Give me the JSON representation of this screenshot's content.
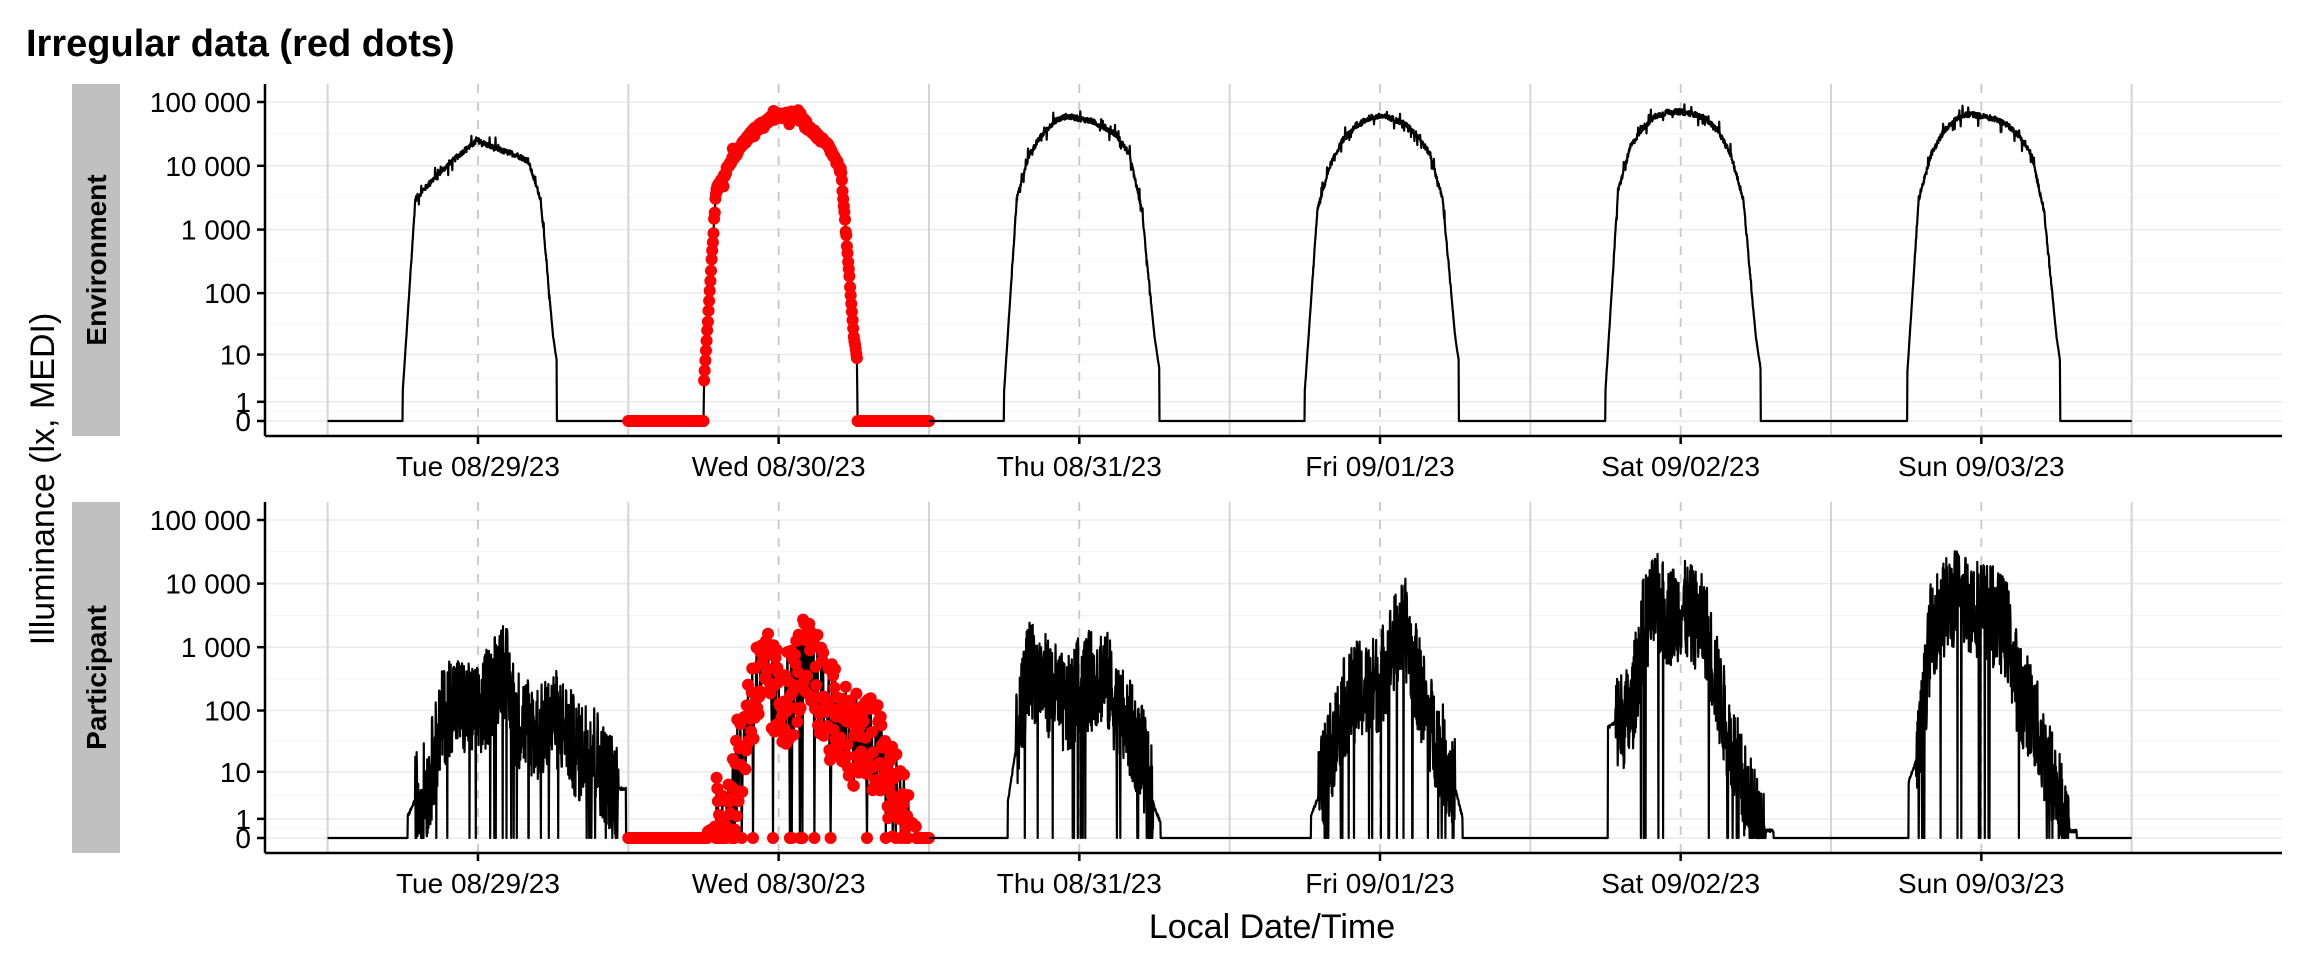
{
  "chart_data": {
    "type": "line",
    "title": "Irregular data (red dots)",
    "xlabel": "Local Date/Time",
    "ylabel": "Illuminance (lx, MEDI)",
    "y_scale": "symlog",
    "y_ticks": [
      0,
      1,
      10,
      100,
      1000,
      10000,
      100000
    ],
    "y_tick_labels": [
      "0",
      "1",
      "10",
      "100",
      "1 000",
      "10 000",
      "100 000"
    ],
    "x_range": [
      "08/28/23 19:00",
      "09/04/23 12:00"
    ],
    "x_ticks": [
      "08/29/23 12:00",
      "08/30/23 12:00",
      "08/31/23 12:00",
      "09/01/23 12:00",
      "09/02/23 12:00",
      "09/03/23 12:00"
    ],
    "x_tick_labels": [
      "Tue 08/29/23",
      "Wed 08/30/23",
      "Thu 08/31/23",
      "Fri 09/01/23",
      "Sat 09/02/23",
      "Sun 09/03/23"
    ],
    "day_boundaries": [
      "08/29/23 00:00",
      "08/30/23 00:00",
      "08/31/23 00:00",
      "09/01/23 00:00",
      "09/02/23 00:00",
      "09/03/23 00:00",
      "09/04/23 00:00"
    ],
    "grid": true,
    "facets": [
      {
        "label": "Environment",
        "days": [
          {
            "date": "08/29/23",
            "style": "line",
            "rise_h": 6.0,
            "set_h": 18.3,
            "hourly_lux": [
              0,
              0,
              0,
              0,
              0,
              0,
              2,
              3000,
              5000,
              8000,
              12000,
              18000,
              25000,
              20000,
              17000,
              15000,
              12000,
              3000,
              20,
              0,
              0,
              0,
              0,
              0
            ]
          },
          {
            "date": "08/30/23",
            "style": "dots",
            "rise_h": 6.0,
            "set_h": 18.3,
            "hourly_lux": [
              0,
              0,
              0,
              0,
              0,
              0,
              2,
              4000,
              10000,
              20000,
              35000,
              50000,
              60000,
              65000,
              50000,
              30000,
              20000,
              8000,
              20,
              0,
              0,
              0,
              0,
              0
            ]
          },
          {
            "date": "08/31/23",
            "style": "line",
            "rise_h": 6.0,
            "set_h": 18.4,
            "hourly_lux": [
              0,
              0,
              0,
              0,
              0,
              0,
              2,
              3000,
              15000,
              30000,
              50000,
              60000,
              55000,
              50000,
              40000,
              30000,
              15000,
              2000,
              20,
              0,
              0,
              0,
              0,
              0
            ]
          },
          {
            "date": "09/01/23",
            "style": "line",
            "rise_h": 6.0,
            "set_h": 18.3,
            "hourly_lux": [
              0,
              0,
              0,
              0,
              0,
              0,
              2,
              2000,
              10000,
              25000,
              40000,
              55000,
              60000,
              55000,
              45000,
              30000,
              15000,
              3000,
              20,
              0,
              0,
              0,
              0,
              0
            ]
          },
          {
            "date": "09/02/23",
            "style": "line",
            "rise_h": 6.0,
            "set_h": 18.4,
            "hourly_lux": [
              0,
              0,
              0,
              0,
              0,
              0,
              2,
              4000,
              20000,
              40000,
              60000,
              70000,
              70000,
              65000,
              55000,
              35000,
              15000,
              3000,
              20,
              0,
              0,
              0,
              0,
              0
            ]
          },
          {
            "date": "09/03/23",
            "style": "line",
            "rise_h": 6.1,
            "set_h": 18.3,
            "hourly_lux": [
              0,
              0,
              0,
              0,
              0,
              0,
              2,
              3000,
              15000,
              35000,
              55000,
              65000,
              60000,
              55000,
              45000,
              30000,
              15000,
              2000,
              20,
              0,
              0,
              0,
              0,
              0
            ]
          }
        ]
      },
      {
        "label": "Participant",
        "days": [
          {
            "date": "08/29/23",
            "style": "line",
            "rise_h": 6.4,
            "set_h": 23.8,
            "hourly_lux": [
              0,
              0,
              0,
              0,
              0,
              0,
              0.5,
              3,
              5,
              60,
              150,
              100,
              80,
              200,
              600,
              80,
              60,
              40,
              80,
              50,
              20,
              30,
              10,
              5
            ]
          },
          {
            "date": "08/30/23",
            "style": "dots",
            "rise_h": 6.3,
            "set_h": 23.0,
            "hourly_lux": [
              0,
              0,
              0,
              0,
              0,
              0,
              0,
              0.5,
              2,
              20,
              200,
              300,
              150,
              200,
              500,
              300,
              100,
              60,
              40,
              30,
              20,
              5,
              1,
              0.5
            ]
          },
          {
            "date": "08/31/23",
            "style": "line",
            "rise_h": 6.3,
            "set_h": 18.5,
            "hourly_lux": [
              0,
              0,
              0,
              0,
              0,
              0,
              0.5,
              30,
              500,
              300,
              200,
              100,
              250,
              300,
              400,
              100,
              50,
              20,
              2,
              0,
              0,
              0,
              0,
              0
            ]
          },
          {
            "date": "09/01/23",
            "style": "line",
            "rise_h": 6.5,
            "set_h": 18.6,
            "hourly_lux": [
              0,
              0,
              0,
              0,
              0,
              0,
              0.3,
              3,
              20,
              100,
              200,
              200,
              300,
              1000,
              2000,
              300,
              60,
              20,
              5,
              0,
              0,
              0,
              0,
              0
            ]
          },
          {
            "date": "09/02/23",
            "style": "line",
            "rise_h": 6.2,
            "set_h": 19.4,
            "hourly_lux": [
              0,
              0,
              0,
              0,
              0,
              0,
              50,
              70,
              80,
              2000,
              5000,
              3000,
              4000,
              3000,
              2000,
              200,
              30,
              5,
              1,
              0,
              0,
              0,
              0,
              0
            ]
          },
          {
            "date": "09/03/23",
            "style": "line",
            "rise_h": 6.2,
            "set_h": 19.6,
            "hourly_lux": [
              0,
              0,
              0,
              0,
              0,
              0,
              5,
              20,
              2000,
              4000,
              6000,
              5000,
              4000,
              3000,
              2000,
              200,
              100,
              20,
              5,
              0,
              0,
              0,
              0,
              0
            ]
          }
        ]
      }
    ],
    "colors": {
      "line": "#000000",
      "irregular": "#ff0000",
      "strip_bg": "#c0c0c0",
      "grid": "#ebebeb",
      "day_line": "#d4d4d4",
      "tick_grid": "#c8c8c8"
    }
  }
}
